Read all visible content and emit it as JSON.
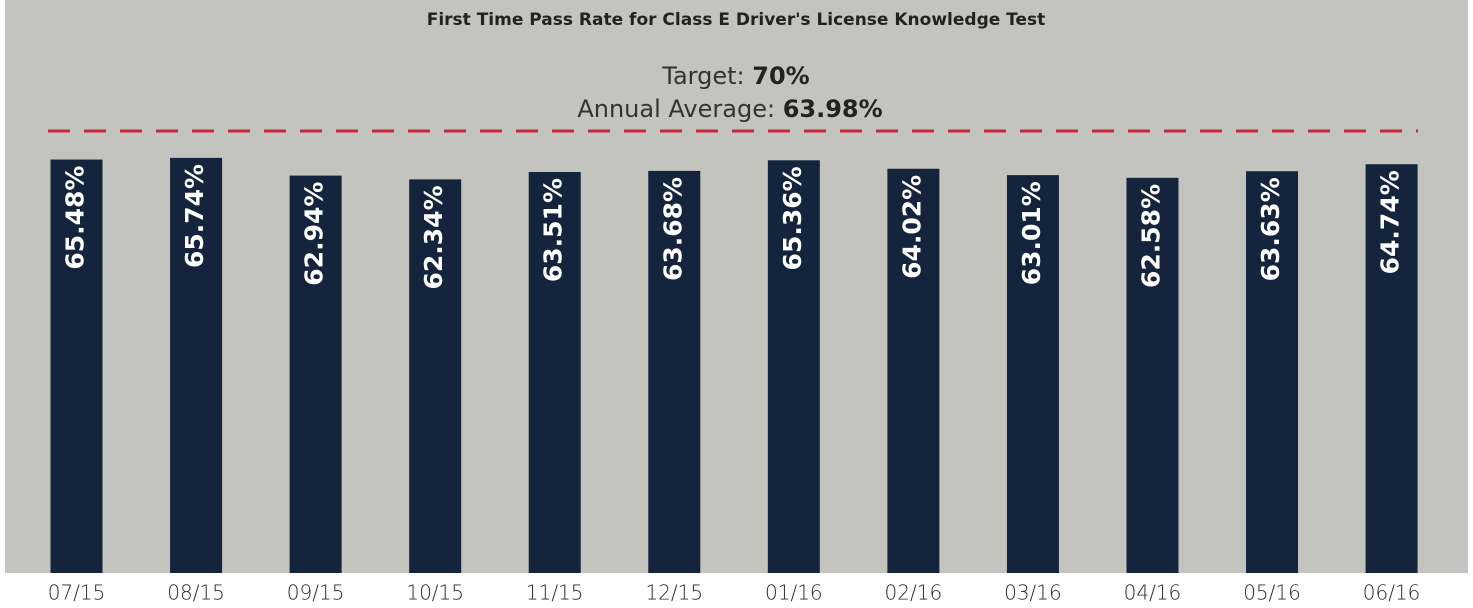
{
  "chart_data": {
    "type": "bar",
    "title": "First Time Pass Rate for Class E Driver's License Knowledge Test",
    "categories": [
      "07/15",
      "08/15",
      "09/15",
      "10/15",
      "11/15",
      "12/15",
      "01/16",
      "02/16",
      "03/16",
      "04/16",
      "05/16",
      "06/16"
    ],
    "values": [
      65.48,
      65.74,
      62.94,
      62.34,
      63.51,
      63.68,
      65.36,
      64.02,
      63.01,
      62.58,
      63.63,
      64.74
    ],
    "value_labels": [
      "65.48%",
      "65.74%",
      "62.94%",
      "62.34%",
      "63.51%",
      "63.68%",
      "65.36%",
      "64.02%",
      "63.01%",
      "62.58%",
      "63.63%",
      "64.74%"
    ],
    "color": "#14243d",
    "ylim": [
      0,
      70
    ],
    "target": {
      "label": "Target:",
      "value": 70,
      "value_label": "70%",
      "color": "#c8283c"
    },
    "average": {
      "label": "Annual Average:",
      "value_label": "63.98%"
    }
  }
}
